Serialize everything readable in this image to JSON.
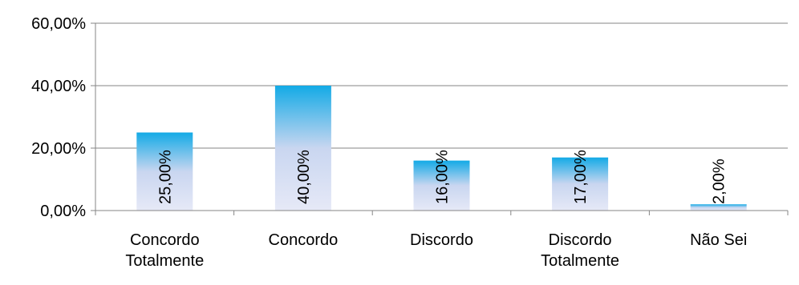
{
  "chart_data": {
    "type": "bar",
    "title": "",
    "xlabel": "",
    "ylabel": "",
    "categories": [
      [
        "Concordo",
        "Totalmente"
      ],
      [
        "Concordo"
      ],
      [
        "Discordo"
      ],
      [
        "Discordo",
        "Totalmente"
      ],
      [
        "Não Sei"
      ]
    ],
    "values": [
      25,
      40,
      16,
      17,
      2
    ],
    "value_labels": [
      "25,00%",
      "40,00%",
      "16,00%",
      "17,00%",
      "2,00%"
    ],
    "ylim": [
      0,
      60
    ],
    "y_ticks": [
      0,
      20,
      40,
      60
    ],
    "y_tick_labels": [
      "0,00%",
      "20,00%",
      "40,00%",
      "60,00%"
    ],
    "grid": true,
    "legend": "none",
    "colors": {
      "bar_top": "#13aae6",
      "bar_bottom": "#e6e9f7",
      "axis": "#868686",
      "grid": "#868686"
    }
  }
}
